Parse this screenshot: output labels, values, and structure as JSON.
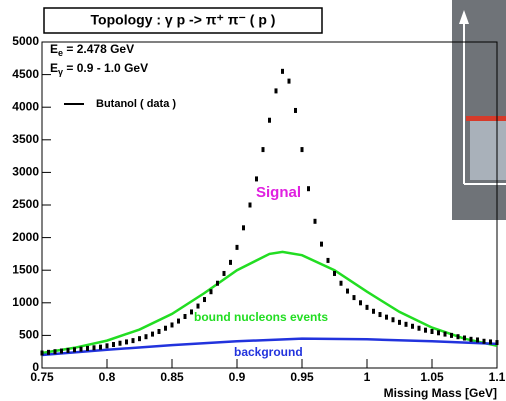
{
  "chart_data": {
    "type": "scatter",
    "title": "Topology : γ p -> π⁺ π⁻ ( p )",
    "annotations": [
      {
        "main": "E",
        "sub": "e",
        "rest": " = 2.478 GeV"
      },
      {
        "main": "E",
        "sub": "γ",
        "rest": " = 0.9 - 1.0 GeV"
      }
    ],
    "signal_label": "Signal",
    "signal_color": "#e020e0",
    "x_label": "Missing Mass [GeV]",
    "xlim": [
      0.75,
      1.1
    ],
    "xticks": [
      0.75,
      0.8,
      0.85,
      0.9,
      0.95,
      1,
      1.05,
      1.1
    ],
    "ylim": [
      0,
      5000
    ],
    "yticks": [
      0,
      500,
      1000,
      1500,
      2000,
      2500,
      3000,
      3500,
      4000,
      4500,
      5000
    ],
    "series": [
      {
        "name": "Butanol ( data )",
        "color": "#000000",
        "x": [
          0.75,
          0.755,
          0.76,
          0.765,
          0.77,
          0.775,
          0.78,
          0.785,
          0.79,
          0.795,
          0.8,
          0.805,
          0.81,
          0.815,
          0.82,
          0.825,
          0.83,
          0.835,
          0.84,
          0.845,
          0.85,
          0.855,
          0.86,
          0.865,
          0.87,
          0.875,
          0.88,
          0.885,
          0.89,
          0.895,
          0.9,
          0.905,
          0.91,
          0.915,
          0.92,
          0.925,
          0.93,
          0.935,
          0.94,
          0.945,
          0.95,
          0.955,
          0.96,
          0.965,
          0.97,
          0.975,
          0.98,
          0.985,
          0.99,
          0.995,
          1,
          1.005,
          1.01,
          1.015,
          1.02,
          1.025,
          1.03,
          1.035,
          1.04,
          1.045,
          1.05,
          1.055,
          1.06,
          1.065,
          1.07,
          1.075,
          1.08,
          1.085,
          1.09,
          1.095,
          1.1
        ],
        "values": [
          230,
          240,
          250,
          260,
          270,
          280,
          290,
          300,
          310,
          320,
          340,
          360,
          380,
          400,
          420,
          450,
          480,
          520,
          560,
          610,
          660,
          720,
          790,
          860,
          950,
          1050,
          1170,
          1300,
          1450,
          1620,
          1850,
          2150,
          2500,
          2900,
          3350,
          3800,
          4250,
          4550,
          4400,
          3950,
          3350,
          2750,
          2250,
          1900,
          1650,
          1450,
          1300,
          1180,
          1080,
          1000,
          930,
          870,
          820,
          780,
          740,
          700,
          670,
          640,
          610,
          580,
          560,
          540,
          520,
          500,
          480,
          460,
          440,
          430,
          410,
          400,
          390
        ]
      }
    ],
    "curves": [
      {
        "name": "bound nucleons events",
        "color": "#22dd22",
        "x": [
          0.75,
          0.775,
          0.8,
          0.825,
          0.85,
          0.875,
          0.9,
          0.925,
          0.935,
          0.95,
          0.975,
          1,
          1.025,
          1.05,
          1.075,
          1.1
        ],
        "values": [
          230,
          310,
          420,
          590,
          830,
          1150,
          1500,
          1750,
          1780,
          1730,
          1500,
          1170,
          860,
          620,
          450,
          340
        ]
      },
      {
        "name": "background",
        "color": "#2233dd",
        "x": [
          0.75,
          0.8,
          0.85,
          0.9,
          0.95,
          1,
          1.05,
          1.1
        ],
        "values": [
          200,
          280,
          350,
          410,
          450,
          440,
          410,
          370
        ]
      }
    ]
  }
}
